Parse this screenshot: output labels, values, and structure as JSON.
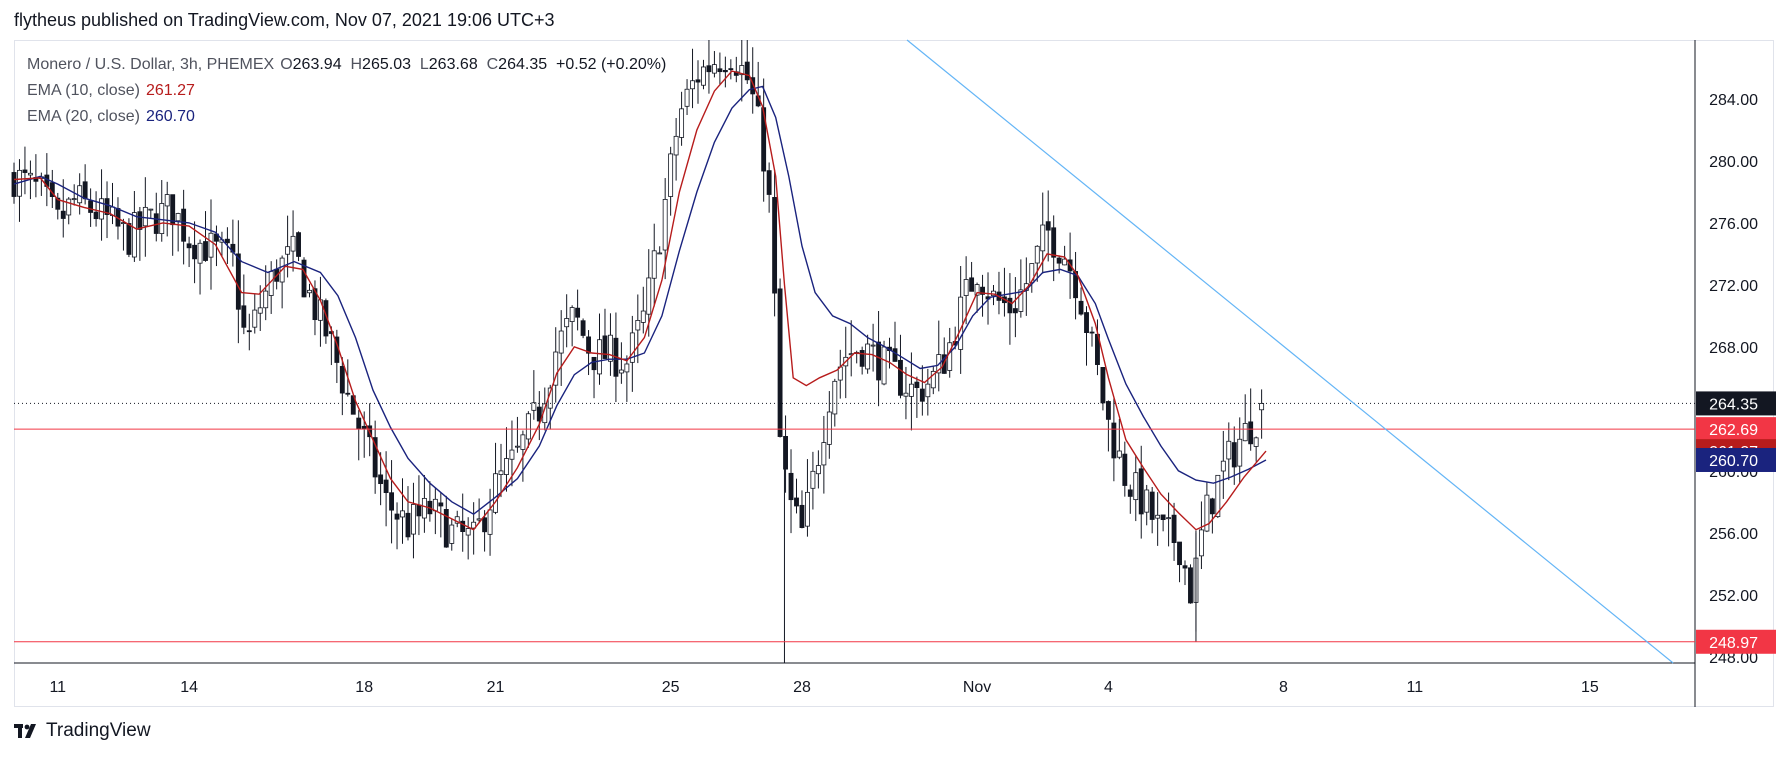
{
  "header": {
    "text": "flytheus published on TradingView.com, Nov 07, 2021 19:06 UTC+3"
  },
  "legend": {
    "symbol": "Monero / U.S. Dollar, 3h, PHEMEX",
    "open_label": "O",
    "open": "263.94",
    "high_label": "H",
    "high": "265.03",
    "low_label": "L",
    "low": "263.68",
    "close_label": "C",
    "close": "264.35",
    "change": "+0.52",
    "change_pct": "(+0.20%)",
    "ema10_label": "EMA (10, close)",
    "ema10_value": "261.27",
    "ema20_label": "EMA (20, close)",
    "ema20_value": "260.70"
  },
  "footer": {
    "brand": "TradingView"
  },
  "colors": {
    "up": "#ffffff",
    "down": "#131722",
    "wick": "#131722",
    "ema10": "#b71c1c",
    "ema20": "#1a237e",
    "trendline": "#64b5f6",
    "hline": "#f23645",
    "last_price_bg": "#131722",
    "ema10_bg": "#b71c1c",
    "ema20_bg": "#1a237e"
  },
  "chart_data": {
    "type": "candlestick",
    "y_axis": {
      "ticks": [
        248,
        252,
        256,
        260,
        264,
        268,
        272,
        276,
        280,
        284
      ],
      "tick_labels": [
        "248.00",
        "252.00",
        "256.00",
        "260.00",
        "264.00",
        "268.00",
        "272.00",
        "276.00",
        "280.00",
        "284.00"
      ],
      "range": [
        247.6,
        287.8
      ]
    },
    "x_axis": {
      "labels": [
        "11",
        "14",
        "18",
        "21",
        "25",
        "28",
        "Nov",
        "4",
        "8",
        "11",
        "15"
      ],
      "label_days": [
        11,
        14,
        18,
        21,
        25,
        28,
        32,
        35,
        39,
        42,
        46
      ],
      "range_days": [
        10,
        48.4
      ]
    },
    "price_labels": [
      {
        "text": "264.35",
        "value": 264.35,
        "kind": "last_price"
      },
      {
        "text": "262.69",
        "value": 262.69,
        "kind": "hline"
      },
      {
        "text": "261.27",
        "value": 261.27,
        "kind": "ema10"
      },
      {
        "text": "260.70",
        "value": 260.7,
        "kind": "ema20"
      },
      {
        "text": "248.97",
        "value": 248.97,
        "kind": "hline"
      }
    ],
    "horizontal_lines": [
      262.69,
      248.97
    ],
    "last_price_line": 264.35,
    "trendline": {
      "start": {
        "day": 30.4,
        "price": 287.8
      },
      "end": {
        "day": 47.9,
        "price": 247.6
      }
    },
    "close_path": [
      [
        10.0,
        279.0
      ],
      [
        10.6,
        278.0
      ],
      [
        11.0,
        276.0
      ],
      [
        11.4,
        277.5
      ],
      [
        12.0,
        276.5
      ],
      [
        12.6,
        275.0
      ],
      [
        13.0,
        276.0
      ],
      [
        13.6,
        277.0
      ],
      [
        14.0,
        275.0
      ],
      [
        14.4,
        274.5
      ],
      [
        15.0,
        273.5
      ],
      [
        15.3,
        268.0
      ],
      [
        15.6,
        270.5
      ],
      [
        16.0,
        273.0
      ],
      [
        16.4,
        274.0
      ],
      [
        16.8,
        271.0
      ],
      [
        17.2,
        268.5
      ],
      [
        17.6,
        265.0
      ],
      [
        18.0,
        262.0
      ],
      [
        18.5,
        258.0
      ],
      [
        19.0,
        256.5
      ],
      [
        19.5,
        257.5
      ],
      [
        20.0,
        256.0
      ],
      [
        20.5,
        255.5
      ],
      [
        21.0,
        259.0
      ],
      [
        21.5,
        261.0
      ],
      [
        22.0,
        264.0
      ],
      [
        22.4,
        268.0
      ],
      [
        22.8,
        270.0
      ],
      [
        23.2,
        267.5
      ],
      [
        23.6,
        267.5
      ],
      [
        24.0,
        267.0
      ],
      [
        24.4,
        270.0
      ],
      [
        24.8,
        276.0
      ],
      [
        25.2,
        283.0
      ],
      [
        25.6,
        285.5
      ],
      [
        26.0,
        286.5
      ],
      [
        26.4,
        287.0
      ],
      [
        26.8,
        285.0
      ],
      [
        27.1,
        281.0
      ],
      [
        27.3,
        276.0
      ],
      [
        27.5,
        262.0
      ],
      [
        27.7,
        258.0
      ],
      [
        28.0,
        256.0
      ],
      [
        28.3,
        260.0
      ],
      [
        28.7,
        266.0
      ],
      [
        29.0,
        267.5
      ],
      [
        29.4,
        268.0
      ],
      [
        29.8,
        267.0
      ],
      [
        30.2,
        266.0
      ],
      [
        30.6,
        265.0
      ],
      [
        31.0,
        266.0
      ],
      [
        31.3,
        267.5
      ],
      [
        31.7,
        271.0
      ],
      [
        32.0,
        273.0
      ],
      [
        32.4,
        271.0
      ],
      [
        32.8,
        270.5
      ],
      [
        33.2,
        272.5
      ],
      [
        33.6,
        275.5
      ],
      [
        34.0,
        274.0
      ],
      [
        34.3,
        272.0
      ],
      [
        34.7,
        267.0
      ],
      [
        35.0,
        263.0
      ],
      [
        35.4,
        259.5
      ],
      [
        35.8,
        258.0
      ],
      [
        36.2,
        256.0
      ],
      [
        36.6,
        255.5
      ],
      [
        36.9,
        252.0
      ],
      [
        37.2,
        257.0
      ],
      [
        37.6,
        260.0
      ],
      [
        38.0,
        262.0
      ],
      [
        38.4,
        263.5
      ],
      [
        38.6,
        264.35
      ]
    ],
    "ema10_path": [
      [
        10.0,
        278.8
      ],
      [
        10.6,
        278.9
      ],
      [
        11.0,
        277.5
      ],
      [
        11.6,
        277.0
      ],
      [
        12.2,
        276.6
      ],
      [
        12.8,
        275.6
      ],
      [
        13.4,
        276.0
      ],
      [
        14.0,
        275.8
      ],
      [
        14.6,
        274.6
      ],
      [
        15.2,
        271.5
      ],
      [
        15.6,
        271.4
      ],
      [
        16.2,
        273.2
      ],
      [
        16.6,
        273.0
      ],
      [
        17.0,
        271.0
      ],
      [
        17.4,
        268.0
      ],
      [
        17.8,
        264.5
      ],
      [
        18.2,
        262.0
      ],
      [
        18.6,
        259.5
      ],
      [
        19.0,
        258.0
      ],
      [
        19.5,
        257.6
      ],
      [
        20.0,
        256.9
      ],
      [
        20.5,
        256.2
      ],
      [
        21.0,
        258.0
      ],
      [
        21.5,
        260.2
      ],
      [
        22.0,
        263.0
      ],
      [
        22.4,
        266.3
      ],
      [
        22.8,
        268.0
      ],
      [
        23.2,
        267.6
      ],
      [
        23.6,
        267.5
      ],
      [
        24.0,
        267.1
      ],
      [
        24.4,
        268.6
      ],
      [
        24.8,
        272.3
      ],
      [
        25.2,
        278.0
      ],
      [
        25.6,
        282.0
      ],
      [
        26.0,
        284.5
      ],
      [
        26.4,
        285.8
      ],
      [
        26.8,
        285.5
      ],
      [
        27.1,
        283.5
      ],
      [
        27.4,
        279.0
      ],
      [
        27.6,
        272.0
      ],
      [
        27.8,
        266.0
      ],
      [
        28.1,
        265.5
      ],
      [
        28.4,
        266.0
      ],
      [
        28.8,
        266.5
      ],
      [
        29.2,
        267.6
      ],
      [
        29.6,
        267.5
      ],
      [
        30.0,
        267.0
      ],
      [
        30.4,
        266.2
      ],
      [
        30.8,
        265.7
      ],
      [
        31.2,
        266.7
      ],
      [
        31.6,
        269.0
      ],
      [
        32.0,
        271.5
      ],
      [
        32.4,
        271.4
      ],
      [
        32.8,
        270.8
      ],
      [
        33.2,
        272.0
      ],
      [
        33.6,
        274.0
      ],
      [
        34.0,
        273.8
      ],
      [
        34.3,
        272.6
      ],
      [
        34.7,
        269.5
      ],
      [
        35.0,
        266.0
      ],
      [
        35.4,
        262.0
      ],
      [
        35.8,
        260.2
      ],
      [
        36.2,
        258.5
      ],
      [
        36.6,
        257.3
      ],
      [
        37.0,
        256.2
      ],
      [
        37.3,
        256.6
      ],
      [
        37.7,
        258.0
      ],
      [
        38.1,
        259.6
      ],
      [
        38.6,
        261.27
      ]
    ],
    "ema20_path": [
      [
        10.0,
        278.5
      ],
      [
        10.6,
        279.0
      ],
      [
        11.0,
        278.5
      ],
      [
        11.6,
        277.6
      ],
      [
        12.2,
        277.1
      ],
      [
        12.8,
        276.4
      ],
      [
        13.4,
        276.2
      ],
      [
        14.0,
        276.0
      ],
      [
        14.6,
        275.4
      ],
      [
        15.2,
        273.5
      ],
      [
        15.8,
        272.8
      ],
      [
        16.4,
        273.5
      ],
      [
        17.0,
        272.8
      ],
      [
        17.4,
        271.3
      ],
      [
        17.8,
        268.6
      ],
      [
        18.2,
        265.2
      ],
      [
        18.6,
        262.8
      ],
      [
        19.0,
        260.8
      ],
      [
        19.5,
        259.2
      ],
      [
        20.0,
        258.0
      ],
      [
        20.5,
        257.2
      ],
      [
        21.0,
        258.3
      ],
      [
        21.5,
        259.5
      ],
      [
        22.0,
        261.6
      ],
      [
        22.4,
        264.2
      ],
      [
        22.8,
        266.2
      ],
      [
        23.2,
        267.0
      ],
      [
        23.6,
        267.2
      ],
      [
        24.0,
        267.2
      ],
      [
        24.4,
        267.6
      ],
      [
        24.8,
        270.0
      ],
      [
        25.2,
        274.2
      ],
      [
        25.6,
        278.0
      ],
      [
        26.0,
        281.2
      ],
      [
        26.4,
        283.4
      ],
      [
        26.8,
        284.6
      ],
      [
        27.1,
        284.8
      ],
      [
        27.4,
        282.8
      ],
      [
        27.7,
        279.0
      ],
      [
        28.0,
        274.5
      ],
      [
        28.3,
        271.5
      ],
      [
        28.7,
        270.0
      ],
      [
        29.1,
        269.5
      ],
      [
        29.5,
        268.6
      ],
      [
        29.9,
        268.0
      ],
      [
        30.3,
        267.3
      ],
      [
        30.7,
        266.6
      ],
      [
        31.1,
        266.8
      ],
      [
        31.5,
        268.0
      ],
      [
        31.9,
        270.0
      ],
      [
        32.3,
        271.2
      ],
      [
        32.7,
        271.4
      ],
      [
        33.1,
        271.6
      ],
      [
        33.5,
        272.8
      ],
      [
        33.9,
        273.0
      ],
      [
        34.3,
        272.6
      ],
      [
        34.7,
        270.8
      ],
      [
        35.0,
        268.5
      ],
      [
        35.4,
        265.6
      ],
      [
        35.8,
        263.5
      ],
      [
        36.2,
        261.6
      ],
      [
        36.6,
        260.0
      ],
      [
        37.0,
        259.4
      ],
      [
        37.4,
        259.2
      ],
      [
        37.8,
        259.6
      ],
      [
        38.2,
        260.1
      ],
      [
        38.6,
        260.7
      ]
    ]
  }
}
